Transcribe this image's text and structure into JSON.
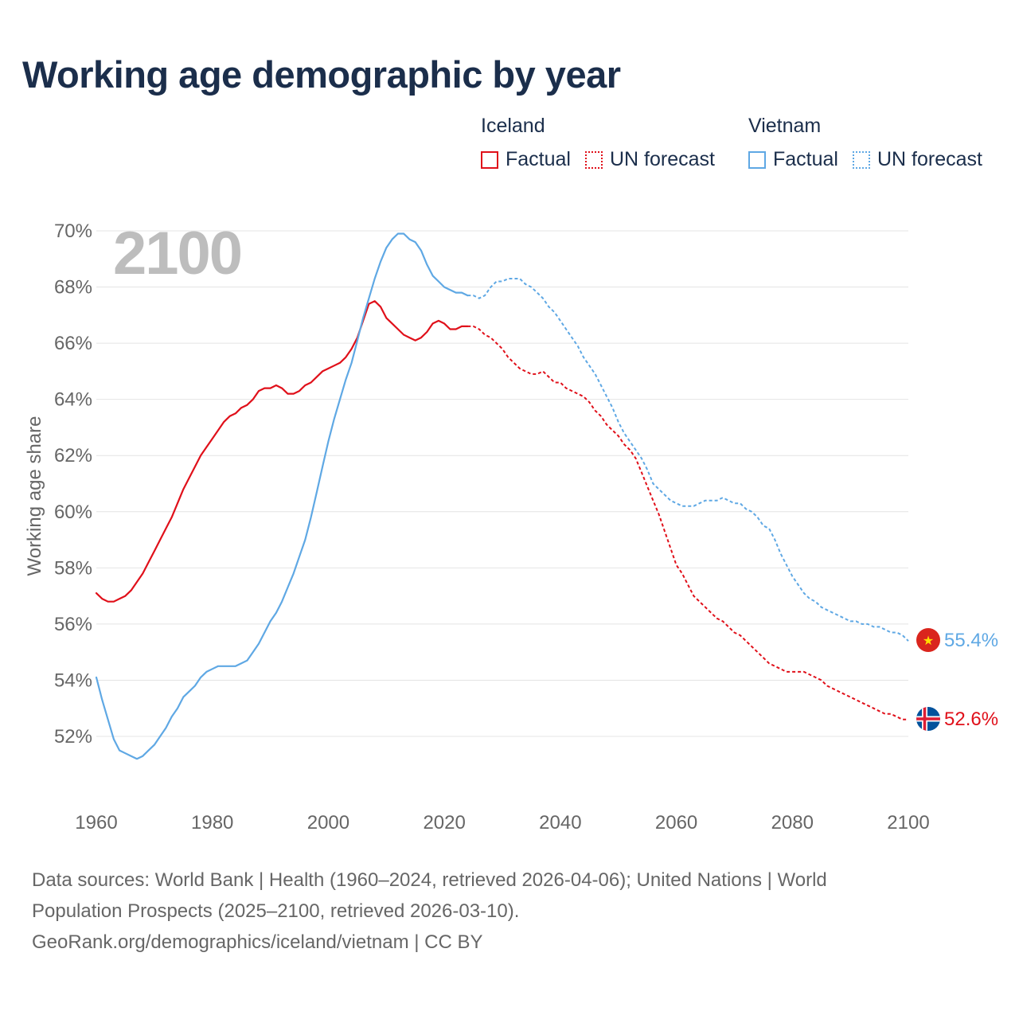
{
  "chart_data": {
    "type": "line",
    "title": "Working age demographic by year",
    "ylabel": "Working age share",
    "xlabel": "",
    "year_label": "2100",
    "xlim": [
      1960,
      2100
    ],
    "ylim": [
      50,
      70.5
    ],
    "x_ticks": [
      "1960",
      "1980",
      "2000",
      "2020",
      "2040",
      "2060",
      "2080",
      "2100"
    ],
    "y_ticks": [
      "52%",
      "54%",
      "56%",
      "58%",
      "60%",
      "62%",
      "64%",
      "66%",
      "68%",
      "70%"
    ],
    "legend": {
      "groups": [
        {
          "name": "Iceland",
          "factual": "Factual",
          "forecast": "UN forecast",
          "color": "#e0101a"
        },
        {
          "name": "Vietnam",
          "factual": "Factual",
          "forecast": "UN forecast",
          "color": "#5fa8e4"
        }
      ]
    },
    "series": [
      {
        "name": "Iceland",
        "color": "#e0101a",
        "end_label": "52.6%",
        "factual": [
          [
            1960,
            57.1
          ],
          [
            1961,
            56.9
          ],
          [
            1962,
            56.8
          ],
          [
            1963,
            56.8
          ],
          [
            1964,
            56.9
          ],
          [
            1965,
            57.0
          ],
          [
            1966,
            57.2
          ],
          [
            1967,
            57.5
          ],
          [
            1968,
            57.8
          ],
          [
            1969,
            58.2
          ],
          [
            1970,
            58.6
          ],
          [
            1971,
            59.0
          ],
          [
            1972,
            59.4
          ],
          [
            1973,
            59.8
          ],
          [
            1974,
            60.3
          ],
          [
            1975,
            60.8
          ],
          [
            1976,
            61.2
          ],
          [
            1977,
            61.6
          ],
          [
            1978,
            62.0
          ],
          [
            1979,
            62.3
          ],
          [
            1980,
            62.6
          ],
          [
            1981,
            62.9
          ],
          [
            1982,
            63.2
          ],
          [
            1983,
            63.4
          ],
          [
            1984,
            63.5
          ],
          [
            1985,
            63.7
          ],
          [
            1986,
            63.8
          ],
          [
            1987,
            64.0
          ],
          [
            1988,
            64.3
          ],
          [
            1989,
            64.4
          ],
          [
            1990,
            64.4
          ],
          [
            1991,
            64.5
          ],
          [
            1992,
            64.4
          ],
          [
            1993,
            64.2
          ],
          [
            1994,
            64.2
          ],
          [
            1995,
            64.3
          ],
          [
            1996,
            64.5
          ],
          [
            1997,
            64.6
          ],
          [
            1998,
            64.8
          ],
          [
            1999,
            65.0
          ],
          [
            2000,
            65.1
          ],
          [
            2001,
            65.2
          ],
          [
            2002,
            65.3
          ],
          [
            2003,
            65.5
          ],
          [
            2004,
            65.8
          ],
          [
            2005,
            66.2
          ],
          [
            2006,
            66.8
          ],
          [
            2007,
            67.4
          ],
          [
            2008,
            67.5
          ],
          [
            2009,
            67.3
          ],
          [
            2010,
            66.9
          ],
          [
            2011,
            66.7
          ],
          [
            2012,
            66.5
          ],
          [
            2013,
            66.3
          ],
          [
            2014,
            66.2
          ],
          [
            2015,
            66.1
          ],
          [
            2016,
            66.2
          ],
          [
            2017,
            66.4
          ],
          [
            2018,
            66.7
          ],
          [
            2019,
            66.8
          ],
          [
            2020,
            66.7
          ],
          [
            2021,
            66.5
          ],
          [
            2022,
            66.5
          ],
          [
            2023,
            66.6
          ],
          [
            2024,
            66.6
          ]
        ],
        "forecast": [
          [
            2024,
            66.6
          ],
          [
            2025,
            66.6
          ],
          [
            2026,
            66.5
          ],
          [
            2027,
            66.3
          ],
          [
            2028,
            66.2
          ],
          [
            2029,
            66.0
          ],
          [
            2030,
            65.8
          ],
          [
            2031,
            65.5
          ],
          [
            2032,
            65.3
          ],
          [
            2033,
            65.1
          ],
          [
            2034,
            65.0
          ],
          [
            2035,
            64.9
          ],
          [
            2036,
            64.9
          ],
          [
            2037,
            65.0
          ],
          [
            2038,
            64.8
          ],
          [
            2039,
            64.6
          ],
          [
            2040,
            64.6
          ],
          [
            2041,
            64.4
          ],
          [
            2042,
            64.3
          ],
          [
            2043,
            64.2
          ],
          [
            2044,
            64.1
          ],
          [
            2045,
            63.9
          ],
          [
            2046,
            63.6
          ],
          [
            2047,
            63.4
          ],
          [
            2048,
            63.1
          ],
          [
            2049,
            62.9
          ],
          [
            2050,
            62.7
          ],
          [
            2051,
            62.4
          ],
          [
            2052,
            62.2
          ],
          [
            2053,
            61.9
          ],
          [
            2054,
            61.4
          ],
          [
            2055,
            60.9
          ],
          [
            2056,
            60.4
          ],
          [
            2057,
            59.9
          ],
          [
            2058,
            59.3
          ],
          [
            2059,
            58.7
          ],
          [
            2060,
            58.1
          ],
          [
            2061,
            57.8
          ],
          [
            2062,
            57.4
          ],
          [
            2063,
            57.0
          ],
          [
            2064,
            56.8
          ],
          [
            2065,
            56.6
          ],
          [
            2066,
            56.4
          ],
          [
            2067,
            56.2
          ],
          [
            2068,
            56.1
          ],
          [
            2069,
            55.9
          ],
          [
            2070,
            55.7
          ],
          [
            2071,
            55.6
          ],
          [
            2072,
            55.4
          ],
          [
            2073,
            55.2
          ],
          [
            2074,
            55.0
          ],
          [
            2075,
            54.8
          ],
          [
            2076,
            54.6
          ],
          [
            2077,
            54.5
          ],
          [
            2078,
            54.4
          ],
          [
            2079,
            54.3
          ],
          [
            2080,
            54.3
          ],
          [
            2081,
            54.3
          ],
          [
            2082,
            54.3
          ],
          [
            2083,
            54.2
          ],
          [
            2084,
            54.1
          ],
          [
            2085,
            54.0
          ],
          [
            2086,
            53.8
          ],
          [
            2087,
            53.7
          ],
          [
            2088,
            53.6
          ],
          [
            2089,
            53.5
          ],
          [
            2090,
            53.4
          ],
          [
            2091,
            53.3
          ],
          [
            2092,
            53.2
          ],
          [
            2093,
            53.1
          ],
          [
            2094,
            53.0
          ],
          [
            2095,
            52.9
          ],
          [
            2096,
            52.8
          ],
          [
            2097,
            52.8
          ],
          [
            2098,
            52.7
          ],
          [
            2099,
            52.6
          ],
          [
            2100,
            52.6
          ]
        ]
      },
      {
        "name": "Vietnam",
        "color": "#5fa8e4",
        "end_label": "55.4%",
        "factual": [
          [
            1960,
            54.1
          ],
          [
            1961,
            53.3
          ],
          [
            1962,
            52.6
          ],
          [
            1963,
            51.9
          ],
          [
            1964,
            51.5
          ],
          [
            1965,
            51.4
          ],
          [
            1966,
            51.3
          ],
          [
            1967,
            51.2
          ],
          [
            1968,
            51.3
          ],
          [
            1969,
            51.5
          ],
          [
            1970,
            51.7
          ],
          [
            1971,
            52.0
          ],
          [
            1972,
            52.3
          ],
          [
            1973,
            52.7
          ],
          [
            1974,
            53.0
          ],
          [
            1975,
            53.4
          ],
          [
            1976,
            53.6
          ],
          [
            1977,
            53.8
          ],
          [
            1978,
            54.1
          ],
          [
            1979,
            54.3
          ],
          [
            1980,
            54.4
          ],
          [
            1981,
            54.5
          ],
          [
            1982,
            54.5
          ],
          [
            1983,
            54.5
          ],
          [
            1984,
            54.5
          ],
          [
            1985,
            54.6
          ],
          [
            1986,
            54.7
          ],
          [
            1987,
            55.0
          ],
          [
            1988,
            55.3
          ],
          [
            1989,
            55.7
          ],
          [
            1990,
            56.1
          ],
          [
            1991,
            56.4
          ],
          [
            1992,
            56.8
          ],
          [
            1993,
            57.3
          ],
          [
            1994,
            57.8
          ],
          [
            1995,
            58.4
          ],
          [
            1996,
            59.0
          ],
          [
            1997,
            59.8
          ],
          [
            1998,
            60.7
          ],
          [
            1999,
            61.6
          ],
          [
            2000,
            62.5
          ],
          [
            2001,
            63.3
          ],
          [
            2002,
            64.0
          ],
          [
            2003,
            64.7
          ],
          [
            2004,
            65.3
          ],
          [
            2005,
            66.1
          ],
          [
            2006,
            66.9
          ],
          [
            2007,
            67.6
          ],
          [
            2008,
            68.3
          ],
          [
            2009,
            68.9
          ],
          [
            2010,
            69.4
          ],
          [
            2011,
            69.7
          ],
          [
            2012,
            69.9
          ],
          [
            2013,
            69.9
          ],
          [
            2014,
            69.7
          ],
          [
            2015,
            69.6
          ],
          [
            2016,
            69.3
          ],
          [
            2017,
            68.8
          ],
          [
            2018,
            68.4
          ],
          [
            2019,
            68.2
          ],
          [
            2020,
            68.0
          ],
          [
            2021,
            67.9
          ],
          [
            2022,
            67.8
          ],
          [
            2023,
            67.8
          ],
          [
            2024,
            67.7
          ]
        ],
        "forecast": [
          [
            2024,
            67.7
          ],
          [
            2025,
            67.7
          ],
          [
            2026,
            67.6
          ],
          [
            2027,
            67.7
          ],
          [
            2028,
            68.0
          ],
          [
            2029,
            68.2
          ],
          [
            2030,
            68.2
          ],
          [
            2031,
            68.3
          ],
          [
            2032,
            68.3
          ],
          [
            2033,
            68.3
          ],
          [
            2034,
            68.1
          ],
          [
            2035,
            68.0
          ],
          [
            2036,
            67.8
          ],
          [
            2037,
            67.6
          ],
          [
            2038,
            67.3
          ],
          [
            2039,
            67.1
          ],
          [
            2040,
            66.8
          ],
          [
            2041,
            66.5
          ],
          [
            2042,
            66.2
          ],
          [
            2043,
            65.9
          ],
          [
            2044,
            65.5
          ],
          [
            2045,
            65.2
          ],
          [
            2046,
            64.9
          ],
          [
            2047,
            64.5
          ],
          [
            2048,
            64.1
          ],
          [
            2049,
            63.7
          ],
          [
            2050,
            63.2
          ],
          [
            2051,
            62.8
          ],
          [
            2052,
            62.5
          ],
          [
            2053,
            62.2
          ],
          [
            2054,
            61.9
          ],
          [
            2055,
            61.5
          ],
          [
            2056,
            61.0
          ],
          [
            2057,
            60.8
          ],
          [
            2058,
            60.6
          ],
          [
            2059,
            60.4
          ],
          [
            2060,
            60.3
          ],
          [
            2061,
            60.2
          ],
          [
            2062,
            60.2
          ],
          [
            2063,
            60.2
          ],
          [
            2064,
            60.3
          ],
          [
            2065,
            60.4
          ],
          [
            2066,
            60.4
          ],
          [
            2067,
            60.4
          ],
          [
            2068,
            60.5
          ],
          [
            2069,
            60.4
          ],
          [
            2070,
            60.3
          ],
          [
            2071,
            60.3
          ],
          [
            2072,
            60.1
          ],
          [
            2073,
            60.0
          ],
          [
            2074,
            59.8
          ],
          [
            2075,
            59.5
          ],
          [
            2076,
            59.4
          ],
          [
            2077,
            59.0
          ],
          [
            2078,
            58.5
          ],
          [
            2079,
            58.1
          ],
          [
            2080,
            57.7
          ],
          [
            2081,
            57.4
          ],
          [
            2082,
            57.1
          ],
          [
            2083,
            56.9
          ],
          [
            2084,
            56.8
          ],
          [
            2085,
            56.6
          ],
          [
            2086,
            56.5
          ],
          [
            2087,
            56.4
          ],
          [
            2088,
            56.3
          ],
          [
            2089,
            56.2
          ],
          [
            2090,
            56.1
          ],
          [
            2091,
            56.1
          ],
          [
            2092,
            56.0
          ],
          [
            2093,
            56.0
          ],
          [
            2094,
            55.9
          ],
          [
            2095,
            55.9
          ],
          [
            2096,
            55.8
          ],
          [
            2097,
            55.7
          ],
          [
            2098,
            55.7
          ],
          [
            2099,
            55.6
          ],
          [
            2100,
            55.4
          ]
        ]
      }
    ]
  },
  "footer": {
    "line1": "Data sources: World Bank | Health (1960–2024, retrieved 2026-04-06); United Nations | World",
    "line2": "Population Prospects (2025–2100, retrieved 2026-03-10).",
    "line3": "GeoRank.org/demographics/iceland/vietnam | CC BY"
  }
}
